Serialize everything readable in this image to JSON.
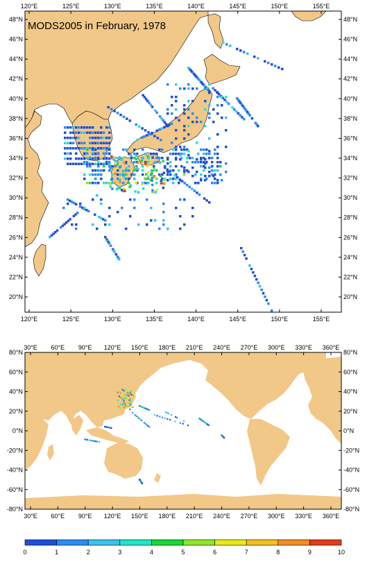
{
  "title": "MODS2005 in February, 1978",
  "colors": {
    "land": "#f2c888",
    "scale": [
      "#1f4fd6",
      "#2a8cf0",
      "#3ac0f0",
      "#20e6c8",
      "#18d838",
      "#8ce828",
      "#e8e818",
      "#f4c020",
      "#f08c28",
      "#e03c1c"
    ]
  },
  "top_map": {
    "lon_ticks": [
      "120°E",
      "125°E",
      "130°E",
      "135°E",
      "140°E",
      "145°E",
      "150°E",
      "155°E"
    ],
    "lat_ticks_left": [
      "48°N",
      "46°N",
      "44°N",
      "42°N",
      "40°N",
      "38°N",
      "36°N",
      "34°N",
      "32°N",
      "30°N",
      "28°N",
      "26°N",
      "24°N",
      "22°N",
      "20°N"
    ],
    "lat_ticks_right": [
      "48°N",
      "46°N",
      "44°N",
      "42°N",
      "40°N",
      "38°N",
      "36°N",
      "34°N",
      "32°N",
      "30°N",
      "28°N",
      "26°N",
      "24°N",
      "22°N",
      "20°N"
    ]
  },
  "bottom_map": {
    "lon_ticks": [
      "30°E",
      "60°E",
      "90°E",
      "120°E",
      "150°E",
      "180°E",
      "210°E",
      "240°E",
      "270°E",
      "300°E",
      "330°E",
      "360°E"
    ],
    "lat_ticks_left": [
      "80°N",
      "60°N",
      "40°N",
      "20°N",
      "0°N",
      "-20°N",
      "-40°N",
      "-60°N",
      "-80°N"
    ],
    "lat_ticks_right": [
      "80°N",
      "60°N",
      "40°N",
      "20°N",
      "0°N",
      "-20°N",
      "-40°N",
      "-60°N",
      "-80°N"
    ]
  },
  "colorbar": {
    "labels": [
      "0",
      "1",
      "2",
      "3",
      "4",
      "5",
      "6",
      "7",
      "8",
      "9",
      "10"
    ]
  }
}
